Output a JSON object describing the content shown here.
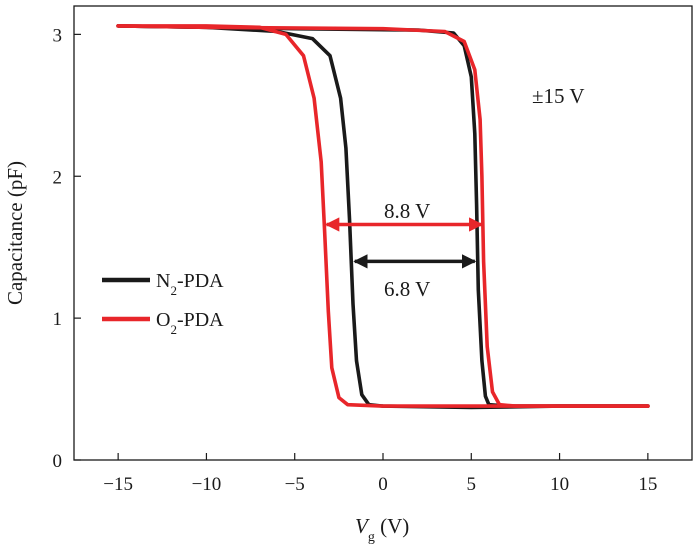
{
  "chart_data": {
    "type": "line",
    "title": "",
    "xlabel_symbol": "V",
    "xlabel_subscript": "g",
    "xlabel_unit": " (V)",
    "ylabel": "Capacitance (pF)",
    "xlim": [
      -17.5,
      17.5
    ],
    "ylim": [
      0,
      3.2
    ],
    "x_ticks": [
      -15,
      -10,
      -5,
      0,
      5,
      10,
      15
    ],
    "x_tick_labels": [
      "−15",
      "−10",
      "−5",
      "0",
      "5",
      "10",
      "15"
    ],
    "y_ticks": [
      0,
      1,
      2,
      3
    ],
    "y_tick_labels": [
      "0",
      "1",
      "2",
      "3"
    ],
    "grid": false,
    "legend_position": "left-middle",
    "series": [
      {
        "name_main": "N",
        "name_sub": "2",
        "name_rest": "-PDA",
        "color": "#1a1a1a",
        "forward": [
          [
            -15,
            3.06
          ],
          [
            -10,
            3.05
          ],
          [
            -6,
            3.02
          ],
          [
            -4,
            2.97
          ],
          [
            -3,
            2.85
          ],
          [
            -2.4,
            2.55
          ],
          [
            -2.1,
            2.2
          ],
          [
            -1.9,
            1.7
          ],
          [
            -1.7,
            1.1
          ],
          [
            -1.5,
            0.7
          ],
          [
            -1.2,
            0.46
          ],
          [
            -0.8,
            0.39
          ],
          [
            0,
            0.38
          ],
          [
            5,
            0.37
          ],
          [
            10,
            0.38
          ],
          [
            15,
            0.38
          ]
        ],
        "reverse": [
          [
            15,
            0.38
          ],
          [
            10,
            0.38
          ],
          [
            7,
            0.38
          ],
          [
            6,
            0.39
          ],
          [
            5.8,
            0.45
          ],
          [
            5.6,
            0.7
          ],
          [
            5.4,
            1.2
          ],
          [
            5.3,
            1.8
          ],
          [
            5.2,
            2.3
          ],
          [
            5,
            2.7
          ],
          [
            4.6,
            2.92
          ],
          [
            4,
            3.01
          ],
          [
            2,
            3.03
          ],
          [
            -5,
            3.04
          ],
          [
            -15,
            3.06
          ]
        ]
      },
      {
        "name_main": "O",
        "name_sub": "2",
        "name_rest": "-PDA",
        "color": "#e8262a",
        "forward": [
          [
            -15,
            3.06
          ],
          [
            -10,
            3.06
          ],
          [
            -7,
            3.05
          ],
          [
            -5.5,
            3.0
          ],
          [
            -4.5,
            2.85
          ],
          [
            -3.9,
            2.55
          ],
          [
            -3.5,
            2.1
          ],
          [
            -3.3,
            1.6
          ],
          [
            -3.1,
            1.05
          ],
          [
            -2.9,
            0.65
          ],
          [
            -2.5,
            0.44
          ],
          [
            -2,
            0.39
          ],
          [
            0,
            0.38
          ],
          [
            5,
            0.38
          ],
          [
            10,
            0.38
          ],
          [
            15,
            0.38
          ]
        ],
        "reverse": [
          [
            15,
            0.38
          ],
          [
            10,
            0.38
          ],
          [
            7.5,
            0.38
          ],
          [
            6.6,
            0.39
          ],
          [
            6.2,
            0.48
          ],
          [
            5.9,
            0.8
          ],
          [
            5.7,
            1.4
          ],
          [
            5.6,
            2.0
          ],
          [
            5.5,
            2.4
          ],
          [
            5.2,
            2.75
          ],
          [
            4.6,
            2.95
          ],
          [
            3.5,
            3.02
          ],
          [
            0,
            3.04
          ],
          [
            -10,
            3.05
          ],
          [
            -15,
            3.06
          ]
        ]
      }
    ],
    "annotations": [
      {
        "text": "±15 V",
        "color": "#1a1a1a"
      },
      {
        "text": "8.8 V",
        "x_from": -3.2,
        "x_to": 5.6,
        "y": 1.66,
        "color": "#e8262a"
      },
      {
        "text": "6.8 V",
        "x_from": -1.6,
        "x_to": 5.2,
        "y": 1.4,
        "color": "#1a1a1a"
      }
    ]
  }
}
